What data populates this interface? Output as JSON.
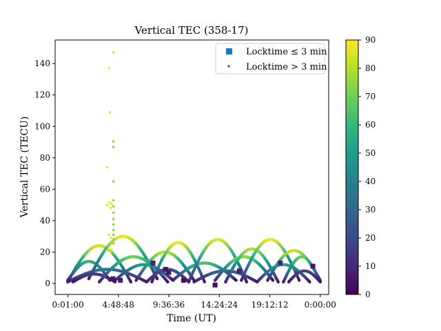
{
  "chart_data": {
    "type": "scatter",
    "title": "Vertical TEC (358-17)",
    "xlabel": "Time (UT)",
    "ylabel": "Vertical TEC (TECU)",
    "xlim_hours": [
      -1.2,
      24.8
    ],
    "ylim": [
      -7,
      155
    ],
    "x_ticks": [
      {
        "hour": 0.0167,
        "label": "0:01:00"
      },
      {
        "hour": 4.8133,
        "label": "4:48:48"
      },
      {
        "hour": 9.61,
        "label": "9:36:36"
      },
      {
        "hour": 14.4067,
        "label": "14:24:24"
      },
      {
        "hour": 19.2033,
        "label": "19:12:12"
      },
      {
        "hour": 24.0,
        "label": "0:00:00"
      }
    ],
    "y_ticks": [
      0,
      20,
      40,
      60,
      80,
      100,
      120,
      140
    ],
    "colorbar": {
      "min": 0,
      "max": 90,
      "ticks": [
        0,
        10,
        20,
        30,
        40,
        50,
        60,
        70,
        80,
        90
      ],
      "colormap": "viridis",
      "stops": [
        "#440154",
        "#482878",
        "#3e4989",
        "#31688e",
        "#26828e",
        "#1f9e89",
        "#35b779",
        "#6ece58",
        "#b5de2b",
        "#fde725"
      ]
    },
    "legend": {
      "placement": "upper right",
      "entries": [
        {
          "label": "Locktime ≤ 3 min",
          "marker": "square",
          "color": "#1f77b4"
        },
        {
          "label": "Locktime > 3 min",
          "marker": "dot",
          "color": "#1f77b4"
        }
      ]
    },
    "arcs": [
      {
        "start": 0.0,
        "end": 6.0,
        "peak": 24,
        "min": 1,
        "elev": 85
      },
      {
        "start": 0.0,
        "end": 4.0,
        "peak": 14,
        "min": 2,
        "elev": 60
      },
      {
        "start": 0.0,
        "end": 7.5,
        "peak": 9,
        "min": 1,
        "elev": 35
      },
      {
        "start": 0.5,
        "end": 4.5,
        "peak": 6,
        "min": 1,
        "elev": 15
      },
      {
        "start": 2.0,
        "end": 8.5,
        "peak": 30,
        "min": 3,
        "elev": 88
      },
      {
        "start": 3.0,
        "end": 9.5,
        "peak": 17,
        "min": 1,
        "elev": 70
      },
      {
        "start": 4.5,
        "end": 10.0,
        "peak": 12,
        "min": 2,
        "elev": 50
      },
      {
        "start": 6.5,
        "end": 12.0,
        "peak": 20,
        "min": 2,
        "elev": 82
      },
      {
        "start": 8.0,
        "end": 13.0,
        "peak": 26,
        "min": 1,
        "elev": 88
      },
      {
        "start": 7.5,
        "end": 11.5,
        "peak": 9,
        "min": 1,
        "elev": 25
      },
      {
        "start": 10.0,
        "end": 16.0,
        "peak": 13,
        "min": 2,
        "elev": 65
      },
      {
        "start": 11.5,
        "end": 17.0,
        "peak": 28,
        "min": 1,
        "elev": 86
      },
      {
        "start": 12.0,
        "end": 18.0,
        "peak": 8,
        "min": 1,
        "elev": 30
      },
      {
        "start": 14.0,
        "end": 19.5,
        "peak": 17,
        "min": 2,
        "elev": 75
      },
      {
        "start": 15.0,
        "end": 20.0,
        "peak": 22,
        "min": 1,
        "elev": 80
      },
      {
        "start": 16.5,
        "end": 22.0,
        "peak": 28,
        "min": 2,
        "elev": 88
      },
      {
        "start": 18.0,
        "end": 23.0,
        "peak": 12,
        "min": 1,
        "elev": 55
      },
      {
        "start": 19.0,
        "end": 24.0,
        "peak": 21,
        "min": 2,
        "elev": 84
      },
      {
        "start": 20.5,
        "end": 24.0,
        "peak": 17,
        "min": 1,
        "elev": 70
      },
      {
        "start": 21.0,
        "end": 24.0,
        "peak": 8,
        "min": 1,
        "elev": 20
      }
    ],
    "outliers": [
      {
        "x": 4.35,
        "y": 147,
        "elev": 85
      },
      {
        "x": 3.95,
        "y": 137,
        "elev": 88
      },
      {
        "x": 4.0,
        "y": 109,
        "elev": 88
      },
      {
        "x": 4.35,
        "y": 90.5,
        "elev": 75
      },
      {
        "x": 4.35,
        "y": 87,
        "elev": 75
      },
      {
        "x": 3.75,
        "y": 74,
        "elev": 88
      },
      {
        "x": 4.35,
        "y": 65,
        "elev": 75
      },
      {
        "x": 4.35,
        "y": 53,
        "elev": 75
      },
      {
        "x": 3.75,
        "y": 50,
        "elev": 85
      },
      {
        "x": 4.0,
        "y": 51.5,
        "elev": 88
      },
      {
        "x": 4.2,
        "y": 50.5,
        "elev": 88
      },
      {
        "x": 4.1,
        "y": 48,
        "elev": 88
      },
      {
        "x": 4.35,
        "y": 49,
        "elev": 75
      },
      {
        "x": 4.35,
        "y": 45,
        "elev": 75
      },
      {
        "x": 4.35,
        "y": 41,
        "elev": 75
      },
      {
        "x": 4.35,
        "y": 37.5,
        "elev": 75
      },
      {
        "x": 4.35,
        "y": 34,
        "elev": 75
      },
      {
        "x": 4.35,
        "y": 31,
        "elev": 75
      },
      {
        "x": 4.35,
        "y": 28,
        "elev": 75
      },
      {
        "x": 4.35,
        "y": 25.5,
        "elev": 75
      },
      {
        "x": 3.9,
        "y": 31,
        "elev": 88
      },
      {
        "x": 4.1,
        "y": 29,
        "elev": 88
      },
      {
        "x": 3.9,
        "y": 22,
        "elev": 88
      },
      {
        "x": 4.15,
        "y": 21.5,
        "elev": 88
      },
      {
        "x": 4.05,
        "y": 20,
        "elev": 88
      }
    ],
    "locktime_short": [
      {
        "x": 4.3,
        "y": 3,
        "elev": 5
      },
      {
        "x": 5.0,
        "y": 2,
        "elev": 8
      },
      {
        "x": 8.1,
        "y": 13,
        "elev": 8
      },
      {
        "x": 9.3,
        "y": 9,
        "elev": 5
      },
      {
        "x": 9.6,
        "y": 7,
        "elev": 5
      },
      {
        "x": 11.0,
        "y": 2,
        "elev": 5
      },
      {
        "x": 14.0,
        "y": -1,
        "elev": 3
      },
      {
        "x": 16.3,
        "y": 8,
        "elev": 8
      },
      {
        "x": 20.2,
        "y": 13,
        "elev": 8
      },
      {
        "x": 23.3,
        "y": 11,
        "elev": 5
      }
    ]
  }
}
